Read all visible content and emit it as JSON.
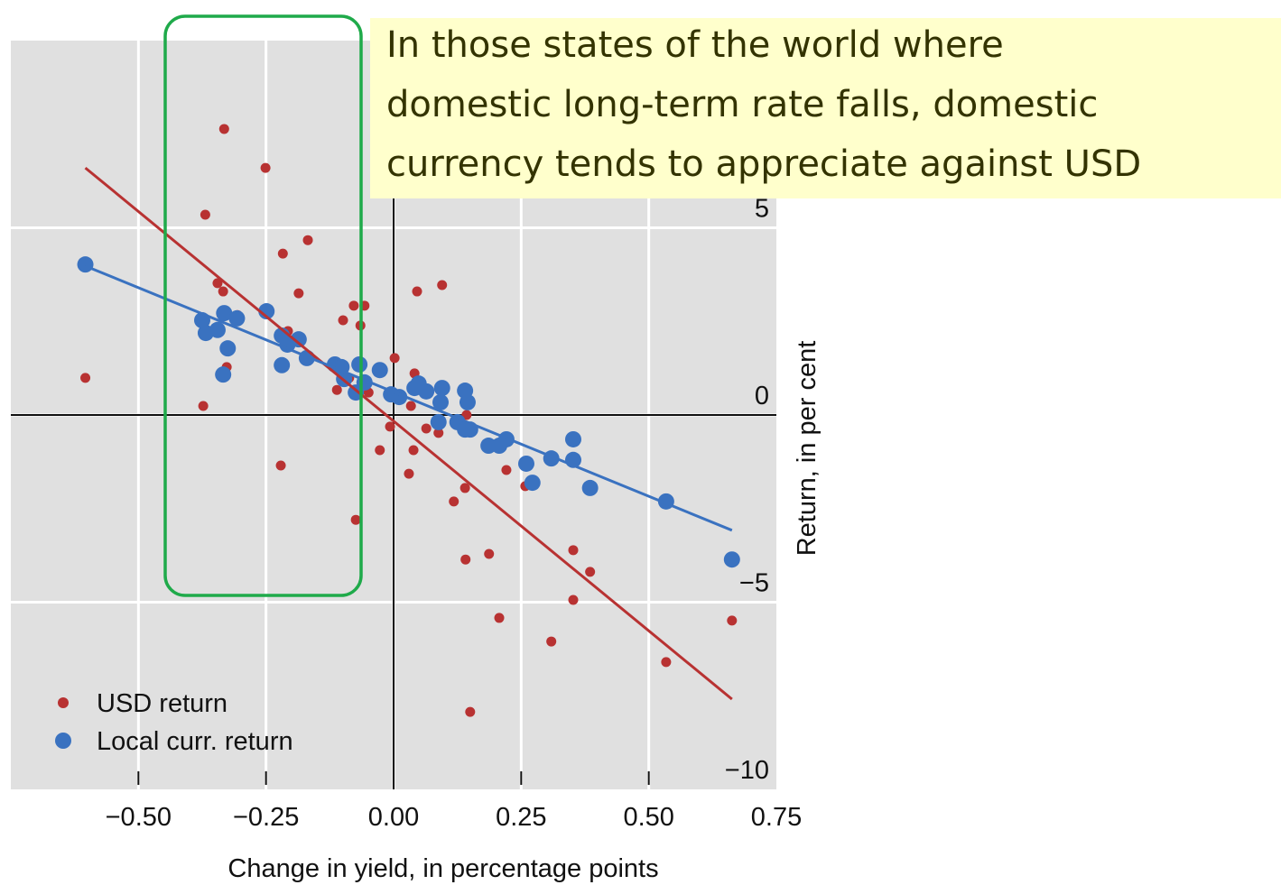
{
  "chart_data": {
    "type": "scatter",
    "xlabel": "Change in yield, in percentage points",
    "ylabel": "Return, in per cent",
    "annotation": [
      "In those states of the world where",
      "domestic long-term rate falls, domestic",
      "currency tends to appreciate against USD"
    ],
    "xlim": [
      -0.75,
      0.75
    ],
    "ylim": [
      -10,
      10
    ],
    "xticks": [
      {
        "value": -0.5,
        "label": "−0.50"
      },
      {
        "value": -0.25,
        "label": "−0.25"
      },
      {
        "value": 0,
        "label": "0.00"
      },
      0.25,
      {
        "value": 0.5,
        "label": "0.50"
      },
      0.75
    ],
    "yticks": [
      5,
      0,
      {
        "value": -5,
        "label": "−5"
      },
      {
        "value": -10,
        "label": "−10"
      }
    ],
    "grid": true,
    "legend": "lower left",
    "series": [
      {
        "name": "USD return",
        "color": "#b83232",
        "x": [
          -0.604,
          -0.332,
          -0.251,
          -0.369,
          -0.168,
          -0.217,
          -0.345,
          -0.334,
          -0.186,
          -0.306,
          -0.207,
          -0.168,
          -0.327,
          -0.373,
          -0.221,
          -0.078,
          -0.057,
          -0.099,
          -0.065,
          -0.102,
          -0.087,
          -0.111,
          -0.049,
          -0.074,
          0.002,
          0.041,
          0.046,
          0.095,
          0.034,
          0.064,
          0.088,
          -0.007,
          -0.027,
          0.039,
          0.03,
          0.143,
          0.14,
          0.118,
          0.141,
          0.187,
          0.221,
          0.258,
          0.352,
          0.385,
          0.352,
          0.207,
          0.309,
          0.15,
          0.534,
          0.663
        ],
        "values": [
          0.99,
          7.64,
          6.6,
          5.35,
          4.67,
          4.31,
          3.52,
          3.3,
          3.25,
          2.67,
          2.24,
          1.54,
          1.28,
          0.24,
          -1.35,
          2.92,
          2.92,
          2.53,
          2.39,
          1.2,
          0.99,
          0.67,
          0.6,
          -2.8,
          1.52,
          1.11,
          3.3,
          3.47,
          0.24,
          -0.36,
          -0.48,
          -0.31,
          -0.94,
          -0.94,
          -1.57,
          0.0,
          -1.95,
          -2.31,
          -3.86,
          -3.71,
          -1.47,
          -1.9,
          -3.61,
          -4.19,
          -4.94,
          -5.42,
          -6.05,
          -7.93,
          -6.6,
          -5.49
        ],
        "trend": {
          "x": [
            -0.604,
            0.663
          ],
          "y": [
            6.6,
            -7.59
          ]
        }
      },
      {
        "name": "Local curr. return",
        "color": "#3a72c0",
        "x": [
          -0.604,
          -0.375,
          -0.368,
          -0.345,
          -0.332,
          -0.307,
          -0.325,
          -0.334,
          -0.249,
          -0.219,
          -0.208,
          -0.186,
          -0.219,
          -0.17,
          -0.115,
          -0.102,
          -0.067,
          -0.027,
          -0.097,
          -0.074,
          -0.057,
          -0.005,
          0.011,
          0.041,
          0.064,
          0.049,
          0.095,
          0.092,
          0.14,
          0.145,
          0.088,
          0.125,
          0.14,
          0.15,
          0.186,
          0.207,
          0.221,
          0.26,
          0.272,
          0.309,
          0.352,
          0.352,
          0.385,
          0.534,
          0.663
        ],
        "values": [
          4.02,
          2.53,
          2.19,
          2.27,
          2.72,
          2.58,
          1.78,
          1.08,
          2.77,
          2.12,
          1.88,
          2.02,
          1.33,
          1.52,
          1.35,
          1.28,
          1.35,
          1.2,
          0.96,
          0.6,
          0.87,
          0.55,
          0.48,
          0.72,
          0.63,
          0.84,
          0.72,
          0.34,
          0.65,
          0.34,
          -0.19,
          -0.19,
          -0.39,
          -0.39,
          -0.82,
          -0.82,
          -0.65,
          -1.3,
          -1.81,
          -1.16,
          -1.2,
          -0.65,
          -1.95,
          -2.31,
          -3.86
        ],
        "trend": {
          "x": [
            -0.604,
            0.663
          ],
          "y": [
            3.98,
            -3.08
          ]
        }
      }
    ]
  }
}
